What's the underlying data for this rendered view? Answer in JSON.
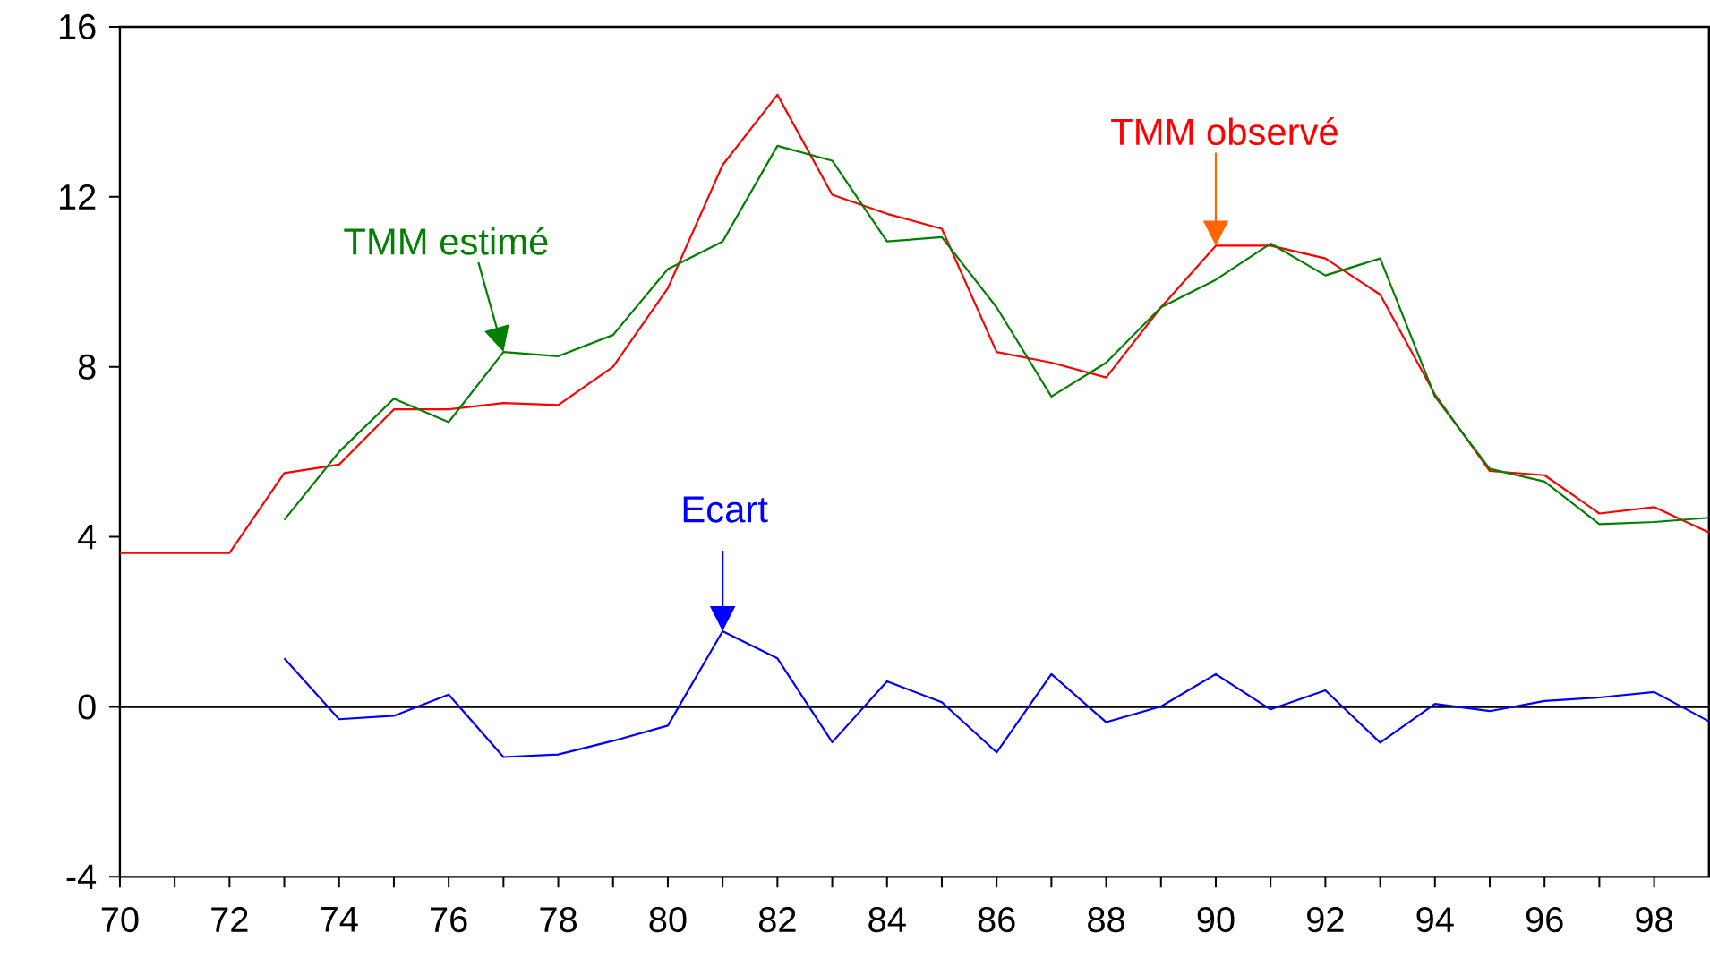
{
  "chart_data": {
    "type": "line",
    "x": [
      70,
      71,
      72,
      73,
      74,
      75,
      76,
      77,
      78,
      79,
      80,
      81,
      82,
      83,
      84,
      85,
      86,
      87,
      88,
      89,
      90,
      91,
      92,
      93,
      94,
      95,
      96,
      97,
      98,
      99
    ],
    "series": [
      {
        "color": "#ff0000",
        "values": [
          3.62,
          3.62,
          3.62,
          5.5,
          5.7,
          7.0,
          7.0,
          7.15,
          7.1,
          8.0,
          9.85,
          12.75,
          14.4,
          12.05,
          11.6,
          11.25,
          8.35,
          8.1,
          7.75,
          9.4,
          10.85,
          10.85,
          10.55,
          9.7,
          7.35,
          5.55,
          5.45,
          4.55,
          4.7,
          4.1
        ]
      },
      {
        "color": "#008000",
        "values": [
          null,
          null,
          null,
          4.4,
          6.0,
          7.25,
          6.7,
          8.35,
          8.25,
          8.75,
          10.3,
          10.95,
          13.2,
          12.85,
          10.95,
          11.05,
          9.4,
          7.3,
          8.1,
          9.4,
          10.05,
          10.9,
          10.15,
          10.55,
          7.3,
          5.6,
          5.3,
          4.3,
          4.35,
          4.45
        ]
      },
      {
        "color": "#0000ff",
        "values": [
          null,
          null,
          null,
          1.14,
          -0.29,
          -0.21,
          0.29,
          -1.18,
          -1.12,
          -0.8,
          -0.44,
          1.78,
          1.14,
          -0.83,
          0.6,
          0.11,
          -1.07,
          0.77,
          -0.36,
          0.01,
          0.77,
          -0.06,
          0.39,
          -0.84,
          0.07,
          -0.1,
          0.14,
          0.22,
          0.35,
          -0.34
        ]
      }
    ],
    "xlim": [
      70,
      99
    ],
    "xticks": [
      70,
      {
        "value": 71,
        "label": null
      },
      72,
      {
        "value": 73,
        "label": null
      },
      74,
      {
        "value": 75,
        "label": null
      },
      76,
      {
        "value": 77,
        "label": null
      },
      78,
      {
        "value": 79,
        "label": null
      },
      80,
      {
        "value": 81,
        "label": null
      },
      82,
      {
        "value": 83,
        "label": null
      },
      84,
      {
        "value": 85,
        "label": null
      },
      86,
      {
        "value": 87,
        "label": null
      },
      88,
      {
        "value": 89,
        "label": null
      },
      90,
      {
        "value": 91,
        "label": null
      },
      92,
      {
        "value": 93,
        "label": null
      },
      94,
      {
        "value": 95,
        "label": null
      },
      96,
      {
        "value": 97,
        "label": null
      },
      98
    ],
    "ylim": [
      -4,
      16
    ],
    "yticks": [
      -4,
      0,
      4,
      8,
      12,
      16
    ],
    "ref_lines": [
      {
        "axis": "y",
        "value": 0,
        "color": "#000000"
      }
    ],
    "annotations": [
      {
        "text": "TMM observé",
        "x": 90,
        "y": 10.85
      },
      {
        "text": "TMM estimé",
        "x": 77,
        "y": 8.35
      },
      {
        "text": "Ecart",
        "x": 81,
        "y": 1.78
      }
    ],
    "grid": false,
    "marker": "none",
    "line_style": "solid"
  }
}
